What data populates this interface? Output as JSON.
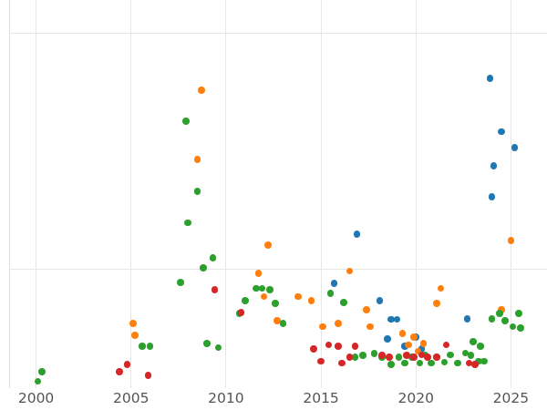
{
  "chart_data": {
    "type": "scatter",
    "title": "",
    "xlabel": "",
    "ylabel": "",
    "x_ticks": [
      2000,
      2005,
      2010,
      2015,
      2020,
      2025
    ],
    "x_tick_labels": [
      "2000",
      "2005",
      "2010",
      "2015",
      "2020",
      "2025"
    ],
    "xlim": [
      1998.1,
      2026.9
    ],
    "ylim": [
      -4.0,
      65.7
    ],
    "y_gridline_values": [
      20,
      60
    ],
    "grid": true,
    "legend": "none",
    "series": [
      {
        "name": "series-blue",
        "color": "#1f77b4",
        "points": [
          [
            2015.7,
            17.5
          ],
          [
            2016.9,
            25.9
          ],
          [
            2018.1,
            14.6
          ],
          [
            2018.5,
            8.1
          ],
          [
            2018.7,
            11.4
          ],
          [
            2019.0,
            11.4
          ],
          [
            2019.4,
            6.8
          ],
          [
            2020.0,
            8.4
          ],
          [
            2020.3,
            6.4
          ],
          [
            2022.7,
            11.5
          ],
          [
            2023.9,
            52.4
          ],
          [
            2024.0,
            32.2
          ],
          [
            2024.1,
            37.5
          ],
          [
            2024.5,
            43.3
          ],
          [
            2025.2,
            40.6
          ]
        ]
      },
      {
        "name": "series-orange",
        "color": "#ff7f0e",
        "points": [
          [
            2005.1,
            10.7
          ],
          [
            2005.2,
            8.7
          ],
          [
            2008.5,
            38.6
          ],
          [
            2008.7,
            50.4
          ],
          [
            2011.7,
            19.2
          ],
          [
            2012.0,
            15.3
          ],
          [
            2012.2,
            24.0
          ],
          [
            2012.7,
            11.2
          ],
          [
            2013.8,
            15.3
          ],
          [
            2014.5,
            14.6
          ],
          [
            2015.1,
            10.2
          ],
          [
            2015.9,
            10.7
          ],
          [
            2016.5,
            19.6
          ],
          [
            2017.4,
            13.0
          ],
          [
            2017.6,
            10.2
          ],
          [
            2019.3,
            9.0
          ],
          [
            2019.6,
            7.1
          ],
          [
            2019.9,
            8.4
          ],
          [
            2020.1,
            6.0
          ],
          [
            2020.4,
            7.3
          ],
          [
            2021.1,
            14.1
          ],
          [
            2021.3,
            16.7
          ],
          [
            2024.5,
            13.0
          ],
          [
            2025.0,
            24.8
          ]
        ]
      },
      {
        "name": "series-green",
        "color": "#2ca02c",
        "points": [
          [
            2000.1,
            0.9
          ],
          [
            2000.3,
            2.5
          ],
          [
            2005.6,
            6.8
          ],
          [
            2006.0,
            6.8
          ],
          [
            2007.6,
            17.7
          ],
          [
            2007.9,
            45.1
          ],
          [
            2008.0,
            27.8
          ],
          [
            2008.5,
            33.2
          ],
          [
            2008.8,
            20.2
          ],
          [
            2009.0,
            7.3
          ],
          [
            2009.3,
            21.9
          ],
          [
            2009.6,
            6.6
          ],
          [
            2010.7,
            12.4
          ],
          [
            2011.0,
            14.6
          ],
          [
            2011.6,
            16.7
          ],
          [
            2011.9,
            16.7
          ],
          [
            2012.3,
            16.4
          ],
          [
            2012.6,
            14.1
          ],
          [
            2013.0,
            10.7
          ],
          [
            2015.5,
            15.8
          ],
          [
            2016.2,
            14.3
          ],
          [
            2016.8,
            5.0
          ],
          [
            2017.2,
            5.3
          ],
          [
            2017.8,
            5.6
          ],
          [
            2018.2,
            5.0
          ],
          [
            2018.7,
            3.7
          ],
          [
            2019.1,
            5.0
          ],
          [
            2019.4,
            4.0
          ],
          [
            2019.8,
            5.0
          ],
          [
            2020.2,
            4.0
          ],
          [
            2020.5,
            5.4
          ],
          [
            2020.8,
            4.0
          ],
          [
            2021.1,
            5.0
          ],
          [
            2021.5,
            4.1
          ],
          [
            2021.8,
            5.4
          ],
          [
            2022.2,
            4.0
          ],
          [
            2022.6,
            5.7
          ],
          [
            2022.9,
            5.3
          ],
          [
            2023.0,
            7.6
          ],
          [
            2023.3,
            4.3
          ],
          [
            2023.4,
            6.8
          ],
          [
            2023.6,
            4.3
          ],
          [
            2024.0,
            11.5
          ],
          [
            2024.4,
            12.4
          ],
          [
            2024.7,
            11.2
          ],
          [
            2025.1,
            10.2
          ],
          [
            2025.4,
            12.4
          ],
          [
            2025.5,
            9.9
          ]
        ]
      },
      {
        "name": "series-red",
        "color": "#d62728",
        "points": [
          [
            2004.4,
            2.5
          ],
          [
            2004.8,
            3.7
          ],
          [
            2005.9,
            1.9
          ],
          [
            2009.4,
            16.4
          ],
          [
            2010.8,
            12.6
          ],
          [
            2014.6,
            6.4
          ],
          [
            2015.0,
            4.3
          ],
          [
            2015.4,
            7.1
          ],
          [
            2015.9,
            6.8
          ],
          [
            2016.1,
            4.0
          ],
          [
            2016.5,
            5.0
          ],
          [
            2016.8,
            6.8
          ],
          [
            2018.2,
            5.3
          ],
          [
            2018.6,
            5.0
          ],
          [
            2019.5,
            5.3
          ],
          [
            2019.9,
            5.0
          ],
          [
            2020.3,
            5.4
          ],
          [
            2020.6,
            5.0
          ],
          [
            2021.1,
            5.0
          ],
          [
            2021.6,
            7.1
          ],
          [
            2022.8,
            4.0
          ],
          [
            2023.1,
            3.7
          ]
        ]
      }
    ]
  },
  "colors": {
    "background": "#ffffff",
    "gridline": "#e6e6e6",
    "tick_label": "#545454"
  }
}
